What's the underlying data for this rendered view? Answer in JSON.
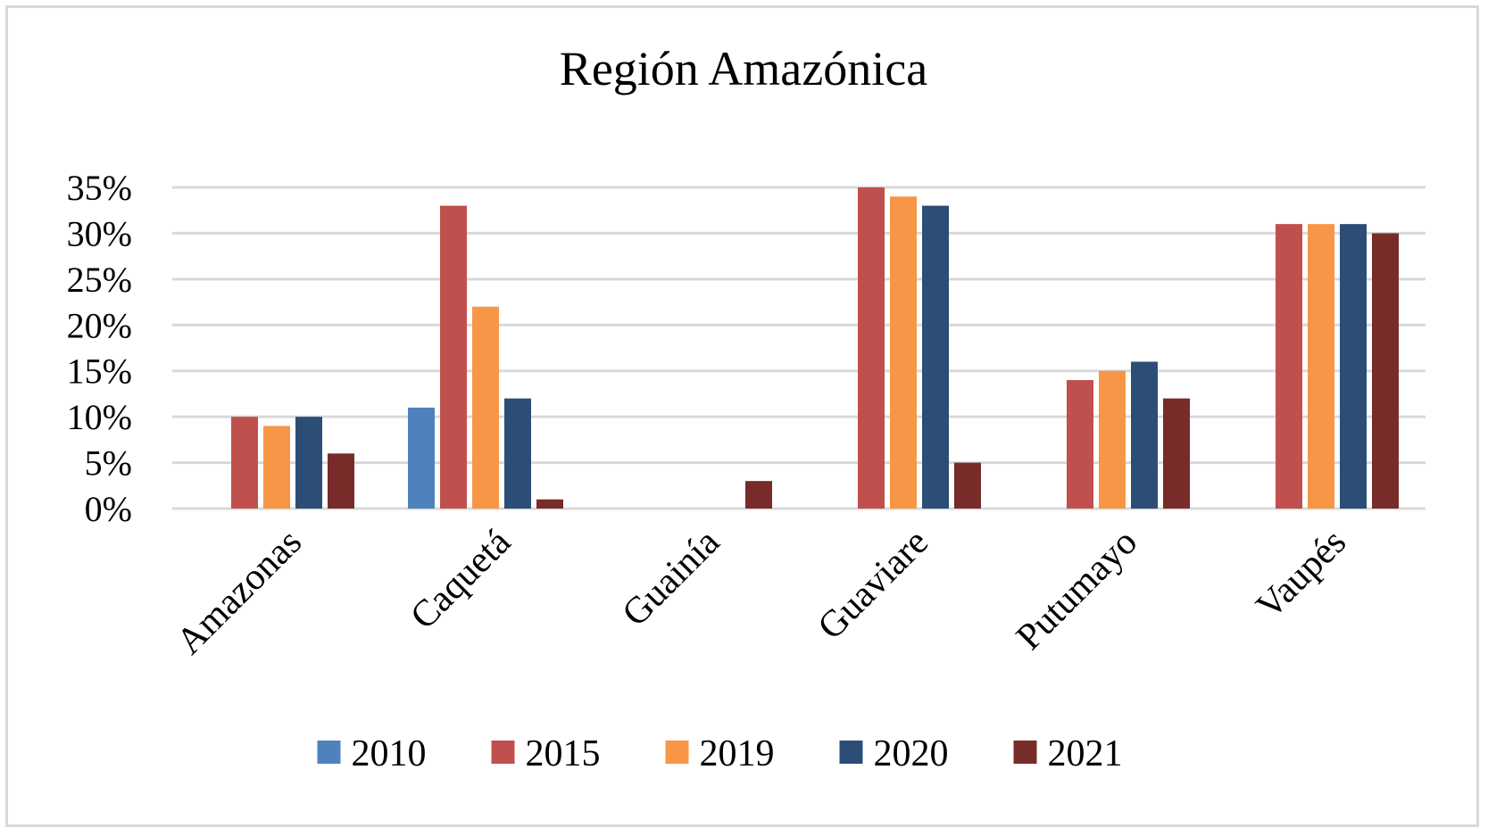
{
  "chart_data": {
    "type": "bar",
    "title": "Región Amazónica",
    "xlabel": "",
    "ylabel": "",
    "ylim": [
      0,
      35
    ],
    "yticks": [
      "0%",
      "5%",
      "10%",
      "15%",
      "20%",
      "25%",
      "30%",
      "35%"
    ],
    "categories": [
      "Amazonas",
      "Caquetá",
      "Guainía",
      "Guaviare",
      "Putumayo",
      "Vaupés"
    ],
    "series": [
      {
        "name": "2010",
        "color": "#4f81bd",
        "values": [
          0,
          11,
          0,
          0,
          0,
          0
        ]
      },
      {
        "name": "2015",
        "color": "#c0504d",
        "values": [
          10,
          33,
          0,
          35,
          14,
          31
        ]
      },
      {
        "name": "2019",
        "color": "#f79646",
        "values": [
          9,
          22,
          0,
          34,
          15,
          31
        ]
      },
      {
        "name": "2020",
        "color": "#2c4d75",
        "values": [
          10,
          12,
          0,
          33,
          16,
          31
        ]
      },
      {
        "name": "2021",
        "color": "#772c2a",
        "values": [
          6,
          1,
          3,
          5,
          12,
          30
        ]
      }
    ],
    "legend_position": "bottom",
    "grid": true
  }
}
